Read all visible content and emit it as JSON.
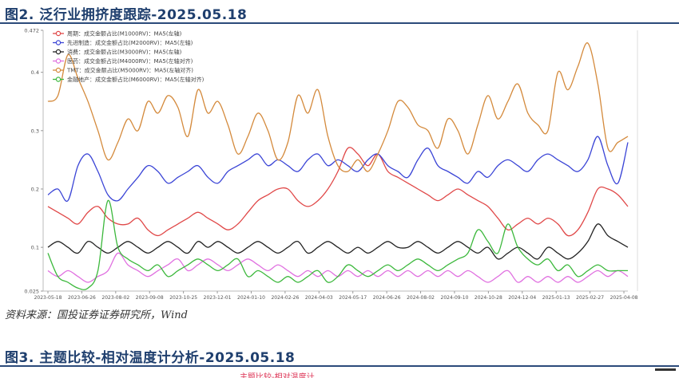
{
  "figure1": {
    "title": "图2. 泛行业拥挤度跟踪-2025.05.18"
  },
  "source": "资料来源：国投证券证券研究所，Wind",
  "figure2": {
    "title": "图3. 主题比较-相对温度计分析-2025.05.18",
    "subtitle_fragment": "主题比较-相对温度计"
  },
  "chart_data": {
    "type": "line",
    "title": "",
    "xlabel": "",
    "ylabel": "",
    "ylim": [
      0.025,
      0.472
    ],
    "yticks": [
      0.025,
      0.1,
      0.2,
      0.3,
      0.4,
      0.472
    ],
    "ytick_labels": [
      "0.025",
      "0.1",
      "0.2",
      "0.3",
      "0.4",
      "0.472"
    ],
    "x_tick_labels": [
      "2023-05-18",
      "2023-06-26",
      "2023-08-02",
      "2023-09-08",
      "2023-10-25",
      "2023-12-01",
      "2024-01-10",
      "2024-02-26",
      "2024-04-03",
      "2024-05-17",
      "2024-06-26",
      "2024-08-02",
      "2024-09-10",
      "2024-10-28",
      "2024-12-04",
      "2025-01-13",
      "2025-02-27",
      "2025-04-08"
    ],
    "grid": false,
    "legend_position": "top-left",
    "series": [
      {
        "name": "周期：成交金额占比(M1000RV)：MA5(左轴)",
        "color": "#e04848",
        "values": [
          0.17,
          0.16,
          0.15,
          0.14,
          0.16,
          0.17,
          0.15,
          0.14,
          0.14,
          0.15,
          0.13,
          0.12,
          0.13,
          0.14,
          0.15,
          0.16,
          0.15,
          0.14,
          0.13,
          0.14,
          0.16,
          0.18,
          0.19,
          0.2,
          0.2,
          0.18,
          0.17,
          0.18,
          0.2,
          0.23,
          0.27,
          0.26,
          0.24,
          0.26,
          0.23,
          0.22,
          0.21,
          0.2,
          0.19,
          0.18,
          0.19,
          0.2,
          0.19,
          0.18,
          0.17,
          0.15,
          0.13,
          0.14,
          0.15,
          0.14,
          0.15,
          0.14,
          0.12,
          0.13,
          0.16,
          0.2,
          0.2,
          0.19,
          0.17
        ]
      },
      {
        "name": "先进制造：成交金额占比(M2000RV)：MA5(左轴)",
        "color": "#3b45d6",
        "values": [
          0.19,
          0.2,
          0.18,
          0.24,
          0.26,
          0.23,
          0.19,
          0.18,
          0.2,
          0.22,
          0.24,
          0.23,
          0.21,
          0.22,
          0.23,
          0.24,
          0.22,
          0.21,
          0.23,
          0.24,
          0.25,
          0.26,
          0.24,
          0.25,
          0.24,
          0.23,
          0.25,
          0.26,
          0.24,
          0.25,
          0.24,
          0.23,
          0.25,
          0.26,
          0.24,
          0.23,
          0.22,
          0.25,
          0.27,
          0.24,
          0.23,
          0.22,
          0.21,
          0.23,
          0.22,
          0.24,
          0.25,
          0.24,
          0.23,
          0.25,
          0.26,
          0.25,
          0.24,
          0.23,
          0.25,
          0.29,
          0.24,
          0.21,
          0.28
        ]
      },
      {
        "name": "消费：成交金额占比(M3000RV)：MA5(左轴)",
        "color": "#222222",
        "values": [
          0.1,
          0.11,
          0.1,
          0.09,
          0.11,
          0.1,
          0.09,
          0.1,
          0.11,
          0.1,
          0.09,
          0.1,
          0.11,
          0.1,
          0.09,
          0.11,
          0.1,
          0.11,
          0.1,
          0.09,
          0.1,
          0.11,
          0.1,
          0.09,
          0.1,
          0.11,
          0.09,
          0.1,
          0.11,
          0.1,
          0.09,
          0.1,
          0.09,
          0.1,
          0.11,
          0.1,
          0.1,
          0.11,
          0.1,
          0.09,
          0.1,
          0.11,
          0.1,
          0.09,
          0.1,
          0.08,
          0.09,
          0.1,
          0.09,
          0.08,
          0.1,
          0.09,
          0.08,
          0.09,
          0.11,
          0.14,
          0.12,
          0.11,
          0.1
        ]
      },
      {
        "name": "医药：成交金额占比(M4000RV)：MA5(左轴对齐)",
        "color": "#e070e0",
        "values": [
          0.06,
          0.05,
          0.06,
          0.05,
          0.04,
          0.05,
          0.06,
          0.09,
          0.07,
          0.06,
          0.05,
          0.06,
          0.07,
          0.08,
          0.06,
          0.07,
          0.08,
          0.07,
          0.06,
          0.07,
          0.08,
          0.07,
          0.06,
          0.07,
          0.06,
          0.05,
          0.06,
          0.05,
          0.06,
          0.05,
          0.06,
          0.05,
          0.06,
          0.05,
          0.06,
          0.05,
          0.06,
          0.05,
          0.06,
          0.05,
          0.06,
          0.05,
          0.06,
          0.05,
          0.04,
          0.05,
          0.06,
          0.04,
          0.05,
          0.04,
          0.05,
          0.04,
          0.05,
          0.04,
          0.05,
          0.06,
          0.05,
          0.06,
          0.05
        ]
      },
      {
        "name": "TMT：成交金额占比(M5000RV)：MA5(左轴对齐)",
        "color": "#d48a3c",
        "values": [
          0.35,
          0.36,
          0.43,
          0.39,
          0.35,
          0.3,
          0.25,
          0.28,
          0.32,
          0.3,
          0.35,
          0.33,
          0.36,
          0.34,
          0.29,
          0.37,
          0.33,
          0.35,
          0.31,
          0.26,
          0.29,
          0.33,
          0.3,
          0.25,
          0.28,
          0.36,
          0.33,
          0.37,
          0.29,
          0.24,
          0.23,
          0.25,
          0.23,
          0.26,
          0.3,
          0.35,
          0.34,
          0.31,
          0.3,
          0.27,
          0.32,
          0.3,
          0.26,
          0.31,
          0.36,
          0.32,
          0.35,
          0.38,
          0.33,
          0.31,
          0.3,
          0.4,
          0.37,
          0.41,
          0.45,
          0.38,
          0.27,
          0.28,
          0.29
        ]
      },
      {
        "name": "金融地产：成交金额占比(M6000RV)：MA5(左轴对齐)",
        "color": "#3cb83c",
        "values": [
          0.09,
          0.05,
          0.04,
          0.03,
          0.03,
          0.06,
          0.18,
          0.1,
          0.08,
          0.07,
          0.06,
          0.07,
          0.05,
          0.06,
          0.07,
          0.08,
          0.07,
          0.06,
          0.07,
          0.08,
          0.05,
          0.06,
          0.05,
          0.04,
          0.05,
          0.04,
          0.05,
          0.06,
          0.04,
          0.05,
          0.07,
          0.06,
          0.05,
          0.06,
          0.07,
          0.06,
          0.07,
          0.08,
          0.07,
          0.06,
          0.07,
          0.08,
          0.09,
          0.13,
          0.11,
          0.09,
          0.14,
          0.1,
          0.08,
          0.07,
          0.08,
          0.06,
          0.07,
          0.05,
          0.06,
          0.07,
          0.06,
          0.06,
          0.06
        ]
      }
    ]
  }
}
